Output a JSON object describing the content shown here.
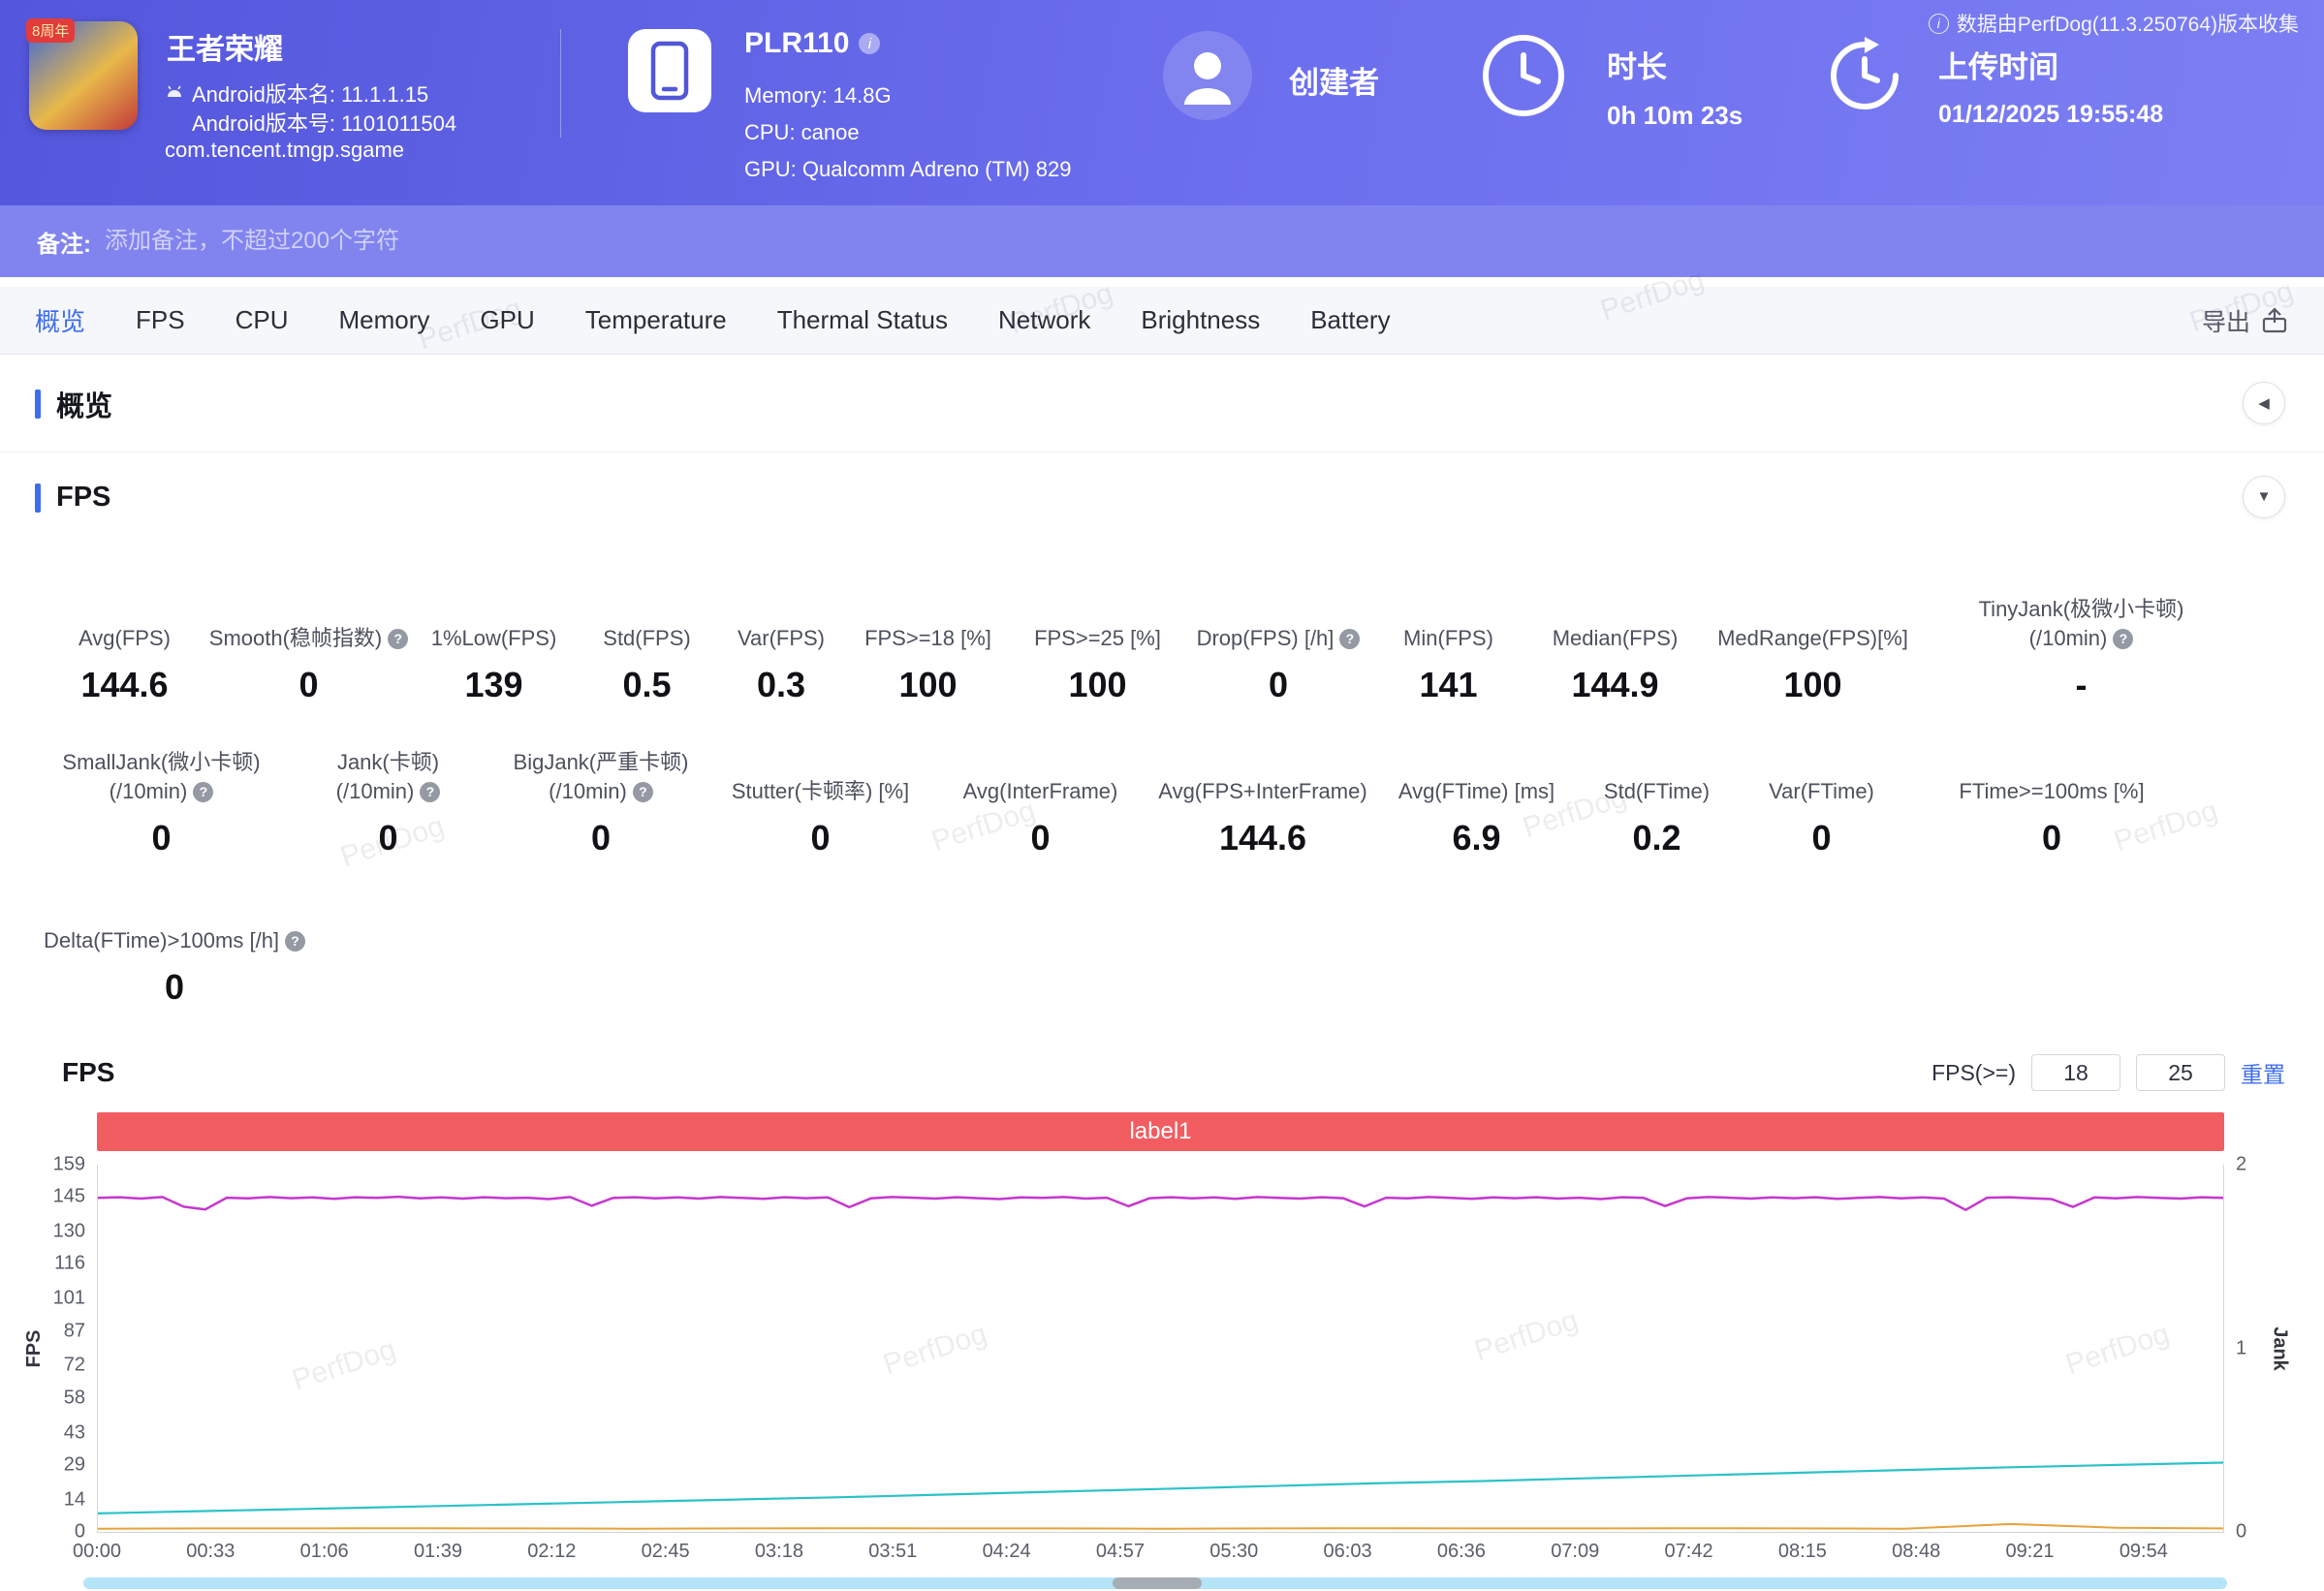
{
  "watermark": "PerfDog",
  "topbar": {
    "collect_info": "数据由PerfDog(11.3.250764)版本收集"
  },
  "app": {
    "title": "王者荣耀",
    "badge": "8周年",
    "version_name": "Android版本名: 11.1.1.15",
    "version_code": "Android版本号: 1101011504",
    "package": "com.tencent.tmgp.sgame"
  },
  "device": {
    "model": "PLR110",
    "memory": "Memory: 14.8G",
    "cpu": "CPU: canoe",
    "gpu": "GPU: Qualcomm Adreno (TM) 829"
  },
  "creator": {
    "label": "创建者"
  },
  "duration": {
    "label": "时长",
    "value": "0h 10m 23s"
  },
  "upload": {
    "label": "上传时间",
    "value": "01/12/2025 19:55:48"
  },
  "note": {
    "label": "备注:",
    "placeholder": "添加备注，不超过200个字符"
  },
  "tabs": [
    "概览",
    "FPS",
    "CPU",
    "Memory",
    "GPU",
    "Temperature",
    "Thermal Status",
    "Network",
    "Brightness",
    "Battery"
  ],
  "export_label": "导出",
  "sections": {
    "overview_title": "概览",
    "fps_title": "FPS"
  },
  "metrics": {
    "row1": [
      {
        "label": "Avg(FPS)",
        "value": "144.6"
      },
      {
        "label": "Smooth(稳帧指数)",
        "value": "0",
        "help": true
      },
      {
        "label": "1%Low(FPS)",
        "value": "139"
      },
      {
        "label": "Std(FPS)",
        "value": "0.5"
      },
      {
        "label": "Var(FPS)",
        "value": "0.3"
      },
      {
        "label": "FPS>=18 [%]",
        "value": "100"
      },
      {
        "label": "FPS>=25 [%]",
        "value": "100"
      },
      {
        "label": "Drop(FPS) [/h]",
        "value": "0",
        "help": true
      },
      {
        "label": "Min(FPS)",
        "value": "141"
      },
      {
        "label": "Median(FPS)",
        "value": "144.9"
      },
      {
        "label": "MedRange(FPS)[%]",
        "value": "100"
      },
      {
        "label": "TinyJank(极微小卡顿)",
        "label2": "(/10min)",
        "value": "-",
        "help": true
      }
    ],
    "row2": [
      {
        "label": "SmallJank(微小卡顿)",
        "label2": "(/10min)",
        "value": "0",
        "help": true
      },
      {
        "label": "Jank(卡顿)",
        "label2": "(/10min)",
        "value": "0",
        "help": true
      },
      {
        "label": "BigJank(严重卡顿)",
        "label2": "(/10min)",
        "value": "0",
        "help": true
      },
      {
        "label": "Stutter(卡顿率) [%]",
        "value": "0"
      },
      {
        "label": "Avg(InterFrame)",
        "value": "0"
      },
      {
        "label": "Avg(FPS+InterFrame)",
        "value": "144.6"
      },
      {
        "label": "Avg(FTime) [ms]",
        "value": "6.9"
      },
      {
        "label": "Std(FTime)",
        "value": "0.2"
      },
      {
        "label": "Var(FTime)",
        "value": "0"
      },
      {
        "label": "FTime>=100ms [%]",
        "value": "0"
      }
    ],
    "row3": [
      {
        "label": "Delta(FTime)>100ms [/h]",
        "value": "0",
        "help": true
      }
    ]
  },
  "fps_filter": {
    "label": "FPS(>=)",
    "value1": "18",
    "value2": "25",
    "reset_label": "重置"
  },
  "chart_data": {
    "type": "line",
    "title": "FPS",
    "banner_label": "label1",
    "ylabel_left": "FPS",
    "ylabel_right": "Jank",
    "ylim_left": [
      0,
      159
    ],
    "ylim_right": [
      0,
      2
    ],
    "y_left_ticks": [
      159,
      145,
      130,
      116,
      101,
      87,
      72,
      58,
      43,
      29,
      14,
      0
    ],
    "y_right_ticks": [
      2,
      1,
      0
    ],
    "x_ticks": [
      "00:00",
      "00:33",
      "01:06",
      "01:39",
      "02:12",
      "02:45",
      "03:18",
      "03:51",
      "04:24",
      "04:57",
      "05:30",
      "06:03",
      "06:36",
      "07:09",
      "07:42",
      "08:15",
      "08:48",
      "09:21",
      "09:54"
    ],
    "grid": false,
    "legend": false,
    "series": [
      {
        "name": "FPS",
        "color": "#c636cf",
        "width": 2.5,
        "values": [
          144.6,
          144.9,
          144.3,
          145.0,
          140.8,
          139.6,
          144.7,
          144.4,
          145.0,
          144.5,
          144.8,
          144.2,
          144.9,
          144.6,
          145.1,
          144.4,
          144.8,
          144.3,
          144.9,
          144.5,
          144.7,
          144.1,
          145.0,
          141.2,
          144.6,
          144.9,
          144.4,
          144.8,
          144.3,
          145.0,
          144.6,
          144.2,
          144.9,
          144.5,
          144.8,
          140.6,
          144.4,
          145.0,
          144.7,
          144.3,
          144.9,
          144.5,
          144.1,
          144.8,
          144.6,
          145.0,
          144.3,
          144.7,
          141.0,
          144.5,
          144.9,
          144.4,
          144.8,
          144.2,
          145.0,
          144.6,
          144.3,
          144.9,
          144.5,
          140.9,
          144.7,
          144.4,
          145.0,
          144.6,
          144.2,
          144.8,
          144.5,
          144.9,
          144.3,
          144.7,
          144.1,
          144.9,
          144.6,
          141.1,
          144.4,
          145.0,
          144.7,
          144.3,
          144.8,
          144.5,
          144.9,
          144.2,
          144.6,
          145.0,
          144.4,
          144.8,
          144.3,
          139.4,
          144.7,
          144.9,
          144.5,
          144.1,
          140.7,
          144.8,
          144.4,
          145.0,
          144.6,
          144.3,
          144.9,
          144.6
        ]
      },
      {
        "name": "teal-line",
        "color": "#2bc2c8",
        "width": 2.2,
        "values": [
          8,
          9,
          10,
          11,
          12,
          13,
          14,
          15,
          16.2,
          17.4,
          18.6,
          19.8,
          21,
          22,
          23.2,
          24.4,
          25.6,
          26.8,
          28,
          29,
          30
        ]
      },
      {
        "name": "orange-line",
        "color": "#e8a23a",
        "width": 2,
        "values": [
          1.4,
          1.5,
          1.5,
          1.6,
          1.5,
          1.4,
          1.5,
          1.6,
          1.5,
          1.5,
          1.4,
          1.5,
          1.6,
          1.5,
          1.5,
          1.6,
          1.5,
          1.4,
          3.4,
          1.8,
          1.5
        ]
      }
    ]
  }
}
